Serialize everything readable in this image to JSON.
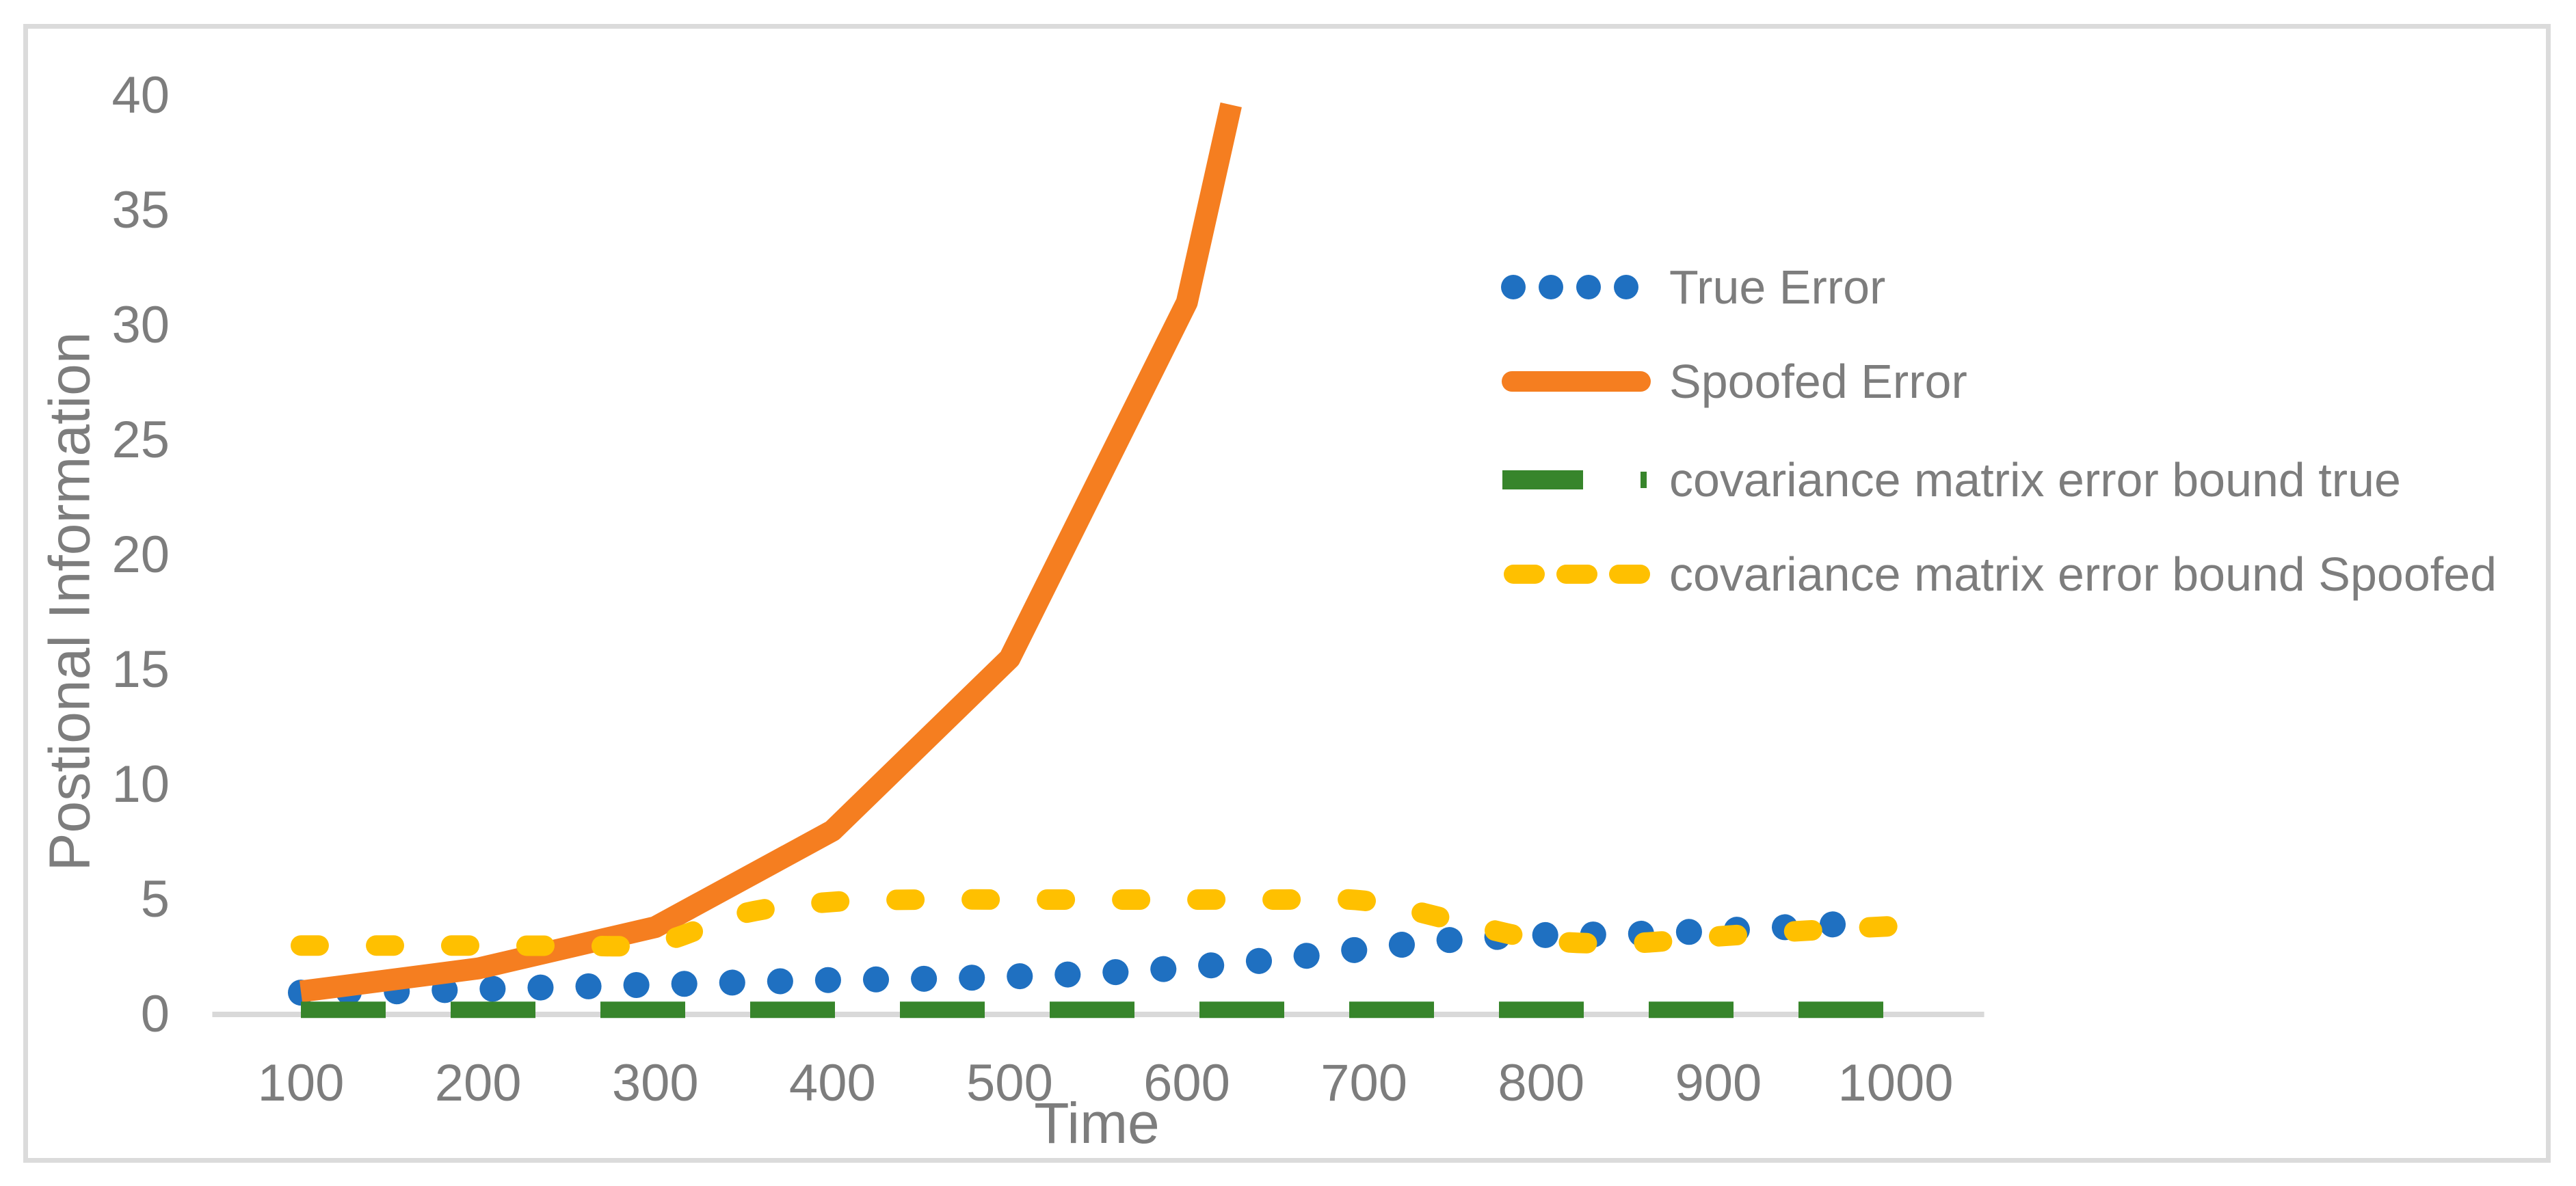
{
  "colors": {
    "background": "#FFFFFF",
    "frame_border": "#DBDBDB",
    "axis_line": "#D9D9D9",
    "text": "#7D7D7D"
  },
  "chart_data": {
    "type": "line",
    "title": "",
    "xlabel": "Time",
    "ylabel": "Postional Information",
    "xlim": [
      50,
      1050
    ],
    "ylim": [
      0,
      40
    ],
    "x_ticks": [
      100,
      200,
      300,
      400,
      500,
      600,
      700,
      800,
      900,
      1000
    ],
    "y_ticks": [
      0,
      5,
      10,
      15,
      20,
      25,
      30,
      35,
      40
    ],
    "grid": false,
    "legend_position": "right-center",
    "series": [
      {
        "name": "True Error",
        "color": "#1F70C1",
        "line_style": "dotted",
        "stroke_width": 38,
        "dash": "0.1 70",
        "cap": "round",
        "smooth": true,
        "points": [
          [
            100,
            0.95
          ],
          [
            150,
            1.0
          ],
          [
            200,
            1.1
          ],
          [
            250,
            1.2
          ],
          [
            300,
            1.3
          ],
          [
            350,
            1.4
          ],
          [
            400,
            1.5
          ],
          [
            450,
            1.55
          ],
          [
            500,
            1.65
          ],
          [
            550,
            1.8
          ],
          [
            600,
            2.05
          ],
          [
            650,
            2.4
          ],
          [
            700,
            2.85
          ],
          [
            750,
            3.25
          ],
          [
            800,
            3.45
          ],
          [
            850,
            3.5
          ],
          [
            900,
            3.65
          ],
          [
            950,
            3.85
          ],
          [
            980,
            4.0
          ]
        ]
      },
      {
        "name": "Spoofed Error",
        "color": "#F57E20",
        "line_style": "solid",
        "stroke_width": 32,
        "dash": "",
        "cap": "butt",
        "smooth": false,
        "points": [
          [
            100,
            1.0
          ],
          [
            200,
            2.0
          ],
          [
            300,
            3.8
          ],
          [
            400,
            8.0
          ],
          [
            500,
            15.5
          ],
          [
            600,
            31.0
          ],
          [
            625,
            39.6
          ]
        ]
      },
      {
        "name": "covariance matrix error bound true",
        "color": "#37852B",
        "line_style": "long-dash",
        "stroke_width": 24,
        "dash": "124 95",
        "cap": "butt",
        "smooth": false,
        "points": [
          [
            100,
            0.2
          ],
          [
            200,
            0.2
          ],
          [
            300,
            0.2
          ],
          [
            400,
            0.2
          ],
          [
            500,
            0.2
          ],
          [
            600,
            0.2
          ],
          [
            700,
            0.2
          ],
          [
            800,
            0.2
          ],
          [
            900,
            0.2
          ],
          [
            1000,
            0.2
          ]
        ]
      },
      {
        "name": "covariance matrix error bound Spoofed",
        "color": "#FFC000",
        "line_style": "dash",
        "stroke_width": 30,
        "dash": "26 84",
        "cap": "round",
        "smooth": true,
        "points": [
          [
            100,
            3.0
          ],
          [
            150,
            3.0
          ],
          [
            200,
            3.0
          ],
          [
            250,
            3.0
          ],
          [
            300,
            3.1
          ],
          [
            350,
            4.4
          ],
          [
            400,
            4.9
          ],
          [
            450,
            5.0
          ],
          [
            500,
            5.0
          ],
          [
            550,
            5.0
          ],
          [
            600,
            5.0
          ],
          [
            650,
            5.0
          ],
          [
            700,
            4.95
          ],
          [
            750,
            4.1
          ],
          [
            800,
            3.25
          ],
          [
            850,
            3.1
          ],
          [
            900,
            3.4
          ],
          [
            950,
            3.65
          ],
          [
            1000,
            3.85
          ]
        ]
      }
    ]
  }
}
